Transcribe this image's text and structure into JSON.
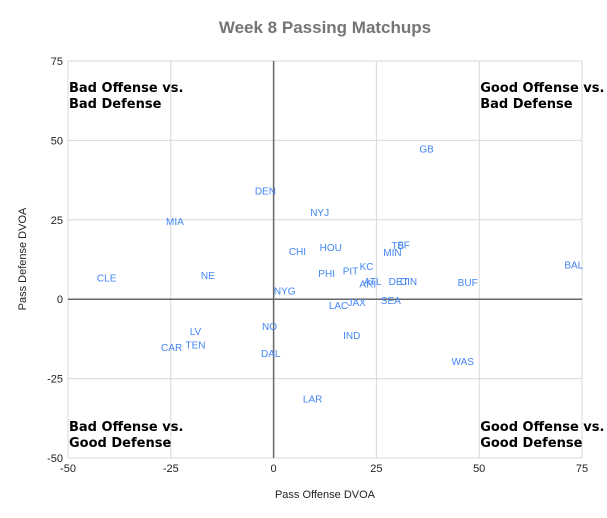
{
  "chart_data": {
    "type": "scatter",
    "title": "Week 8 Passing Matchups",
    "xlabel": "Pass Offense DVOA",
    "ylabel": "Pass Defense DVOA",
    "xlim": [
      -50,
      75
    ],
    "ylim": [
      -50,
      75
    ],
    "xticks": [
      -50,
      -25,
      0,
      25,
      50,
      75
    ],
    "yticks": [
      -50,
      -25,
      0,
      25,
      50,
      75
    ],
    "grid": true,
    "label_color": "#4285f4",
    "points": [
      {
        "label": "GB",
        "x": 37.2,
        "y": 47.5
      },
      {
        "label": "DEN",
        "x": -2.0,
        "y": 34.3
      },
      {
        "label": "NYJ",
        "x": 11.2,
        "y": 27.4
      },
      {
        "label": "MIA",
        "x": -24.0,
        "y": 24.6
      },
      {
        "label": "HOU",
        "x": 13.9,
        "y": 16.4
      },
      {
        "label": "CHI",
        "x": 5.8,
        "y": 15.1
      },
      {
        "label": "TB",
        "x": 30.2,
        "y": 17.0
      },
      {
        "label": "SF",
        "x": 31.6,
        "y": 17.3
      },
      {
        "label": "MIN",
        "x": 28.9,
        "y": 14.8
      },
      {
        "label": "KC",
        "x": 22.6,
        "y": 10.4
      },
      {
        "label": "PIT",
        "x": 18.7,
        "y": 9.1
      },
      {
        "label": "PHI",
        "x": 12.9,
        "y": 8.2
      },
      {
        "label": "CLE",
        "x": -40.6,
        "y": 6.9
      },
      {
        "label": "NE",
        "x": -16.0,
        "y": 7.6
      },
      {
        "label": "ATL",
        "x": 24.1,
        "y": 5.7
      },
      {
        "label": "ARI",
        "x": 22.9,
        "y": 5.0
      },
      {
        "label": "DET",
        "x": 30.4,
        "y": 5.7
      },
      {
        "label": "CIN",
        "x": 32.8,
        "y": 5.7
      },
      {
        "label": "BUF",
        "x": 47.2,
        "y": 5.4
      },
      {
        "label": "BAL",
        "x": 73.0,
        "y": 11.0
      },
      {
        "label": "NYG",
        "x": 2.7,
        "y": 2.8
      },
      {
        "label": "LAC",
        "x": 15.8,
        "y": -1.9
      },
      {
        "label": "JAX",
        "x": 20.2,
        "y": -0.9
      },
      {
        "label": "SEA",
        "x": 28.5,
        "y": -0.3
      },
      {
        "label": "NO",
        "x": -1.0,
        "y": -8.5
      },
      {
        "label": "LV",
        "x": -19.0,
        "y": -10.0
      },
      {
        "label": "IND",
        "x": 19.0,
        "y": -11.3
      },
      {
        "label": "TEN",
        "x": -19.0,
        "y": -14.2
      },
      {
        "label": "CAR",
        "x": -24.8,
        "y": -15.1
      },
      {
        "label": "DAL",
        "x": -0.7,
        "y": -17.0
      },
      {
        "label": "WAS",
        "x": 46.0,
        "y": -19.5
      },
      {
        "label": "LAR",
        "x": 9.5,
        "y": -31.2
      }
    ],
    "annotations": [
      {
        "id": "top-left",
        "lines": [
          "Bad Offense vs.",
          "Bad Defense"
        ],
        "x": -50,
        "y": 75,
        "placement": "top-left"
      },
      {
        "id": "top-right",
        "lines": [
          "Good Offense vs.",
          "Bad Defense"
        ],
        "x": 50,
        "y": 75,
        "placement": "top-right"
      },
      {
        "id": "bottom-left",
        "lines": [
          "Bad Offense vs.",
          "Good Defense"
        ],
        "x": -50,
        "y": -50,
        "placement": "bottom-left"
      },
      {
        "id": "bottom-right",
        "lines": [
          "Good Offense vs.",
          "Good Defense"
        ],
        "x": 50,
        "y": -50,
        "placement": "bottom-right"
      }
    ]
  }
}
